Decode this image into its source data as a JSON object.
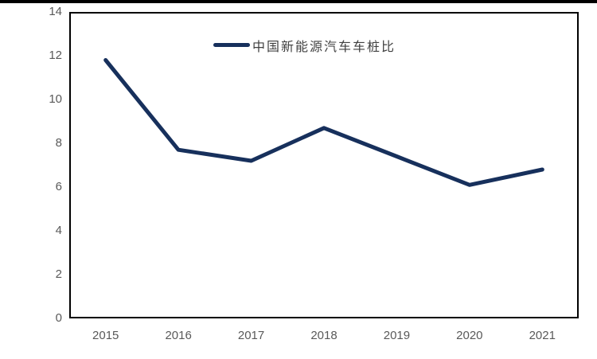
{
  "chart_data": {
    "type": "line",
    "title": "",
    "legend": "中国新能源汽车车桩比",
    "legend_position": "top-center-inside",
    "categories": [
      "2015",
      "2016",
      "2017",
      "2018",
      "2019",
      "2020",
      "2021"
    ],
    "values": [
      11.8,
      7.7,
      7.2,
      8.7,
      7.4,
      6.1,
      6.8
    ],
    "ylim": [
      0,
      14
    ],
    "yticks": [
      0,
      2,
      4,
      6,
      8,
      10,
      12,
      14
    ],
    "xlabel": "",
    "ylabel": "",
    "grid": false,
    "line_color": "#17305c",
    "line_width": 5,
    "axis_tick_color": "#595959",
    "legend_text_color": "#404040",
    "frame_color": "#000000",
    "background_color": "#ffffff"
  }
}
